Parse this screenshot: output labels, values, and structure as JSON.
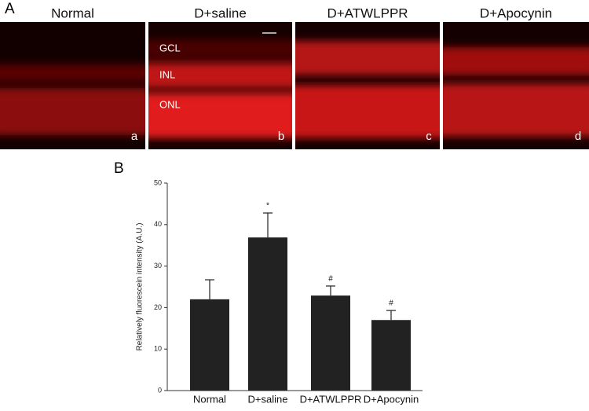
{
  "panel_a": {
    "label": "A",
    "images": [
      {
        "title": "Normal",
        "letter": "a"
      },
      {
        "title": "D+saline",
        "letter": "b",
        "layers": [
          "GCL",
          "INL",
          "ONL"
        ]
      },
      {
        "title": "D+ATWLPPR",
        "letter": "c"
      },
      {
        "title": "D+Apocynin",
        "letter": "d"
      }
    ]
  },
  "chart_data": {
    "type": "bar",
    "panel_label": "B",
    "ylabel": "Relatively fluorescein intensity (A.U.)",
    "categories": [
      "Normal",
      "D+saline",
      "D+ATWLPPR",
      "D+Apocynin"
    ],
    "values": [
      22,
      36.9,
      22.9,
      17
    ],
    "errors": [
      4.7,
      5.9,
      2.3,
      2.3
    ],
    "annotations": [
      null,
      "*",
      "#",
      "#"
    ],
    "color": "#222222",
    "ylim": [
      0,
      50
    ],
    "yticks": [
      0,
      10,
      20,
      30,
      40,
      50
    ]
  }
}
